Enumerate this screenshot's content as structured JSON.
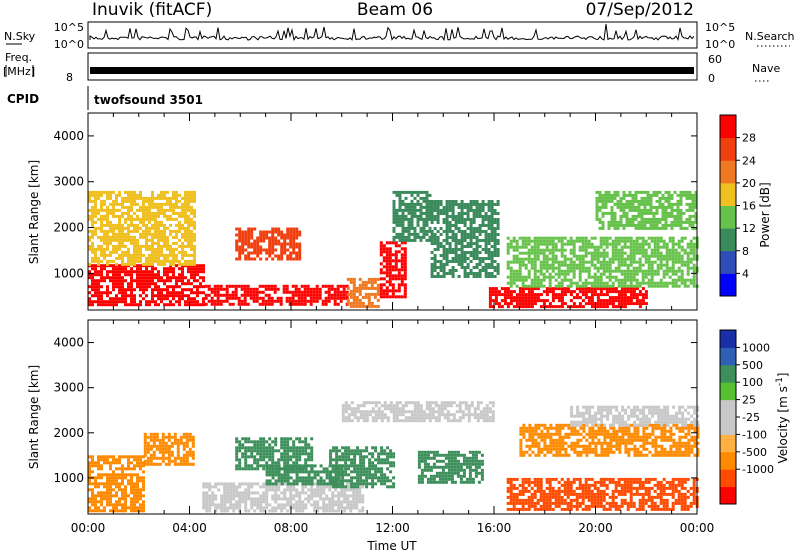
{
  "header": {
    "title": "Inuvik (fitACF)",
    "beam": "Beam 06",
    "date": "07/Sep/2012"
  },
  "top_panels": {
    "noise_left_label": "N.Sky",
    "noise_right_label": "N.Search",
    "noise_ticks": [
      "10^5",
      "10^0"
    ],
    "freq_left_label_1": "Freq.",
    "freq_left_label_2": "[MHz]",
    "freq_ticks": [
      "8"
    ],
    "nave_label": "Nave",
    "nave_ticks": [
      "60",
      "0"
    ],
    "cpid_label": "CPID",
    "cpid_value": "twofsound 3501"
  },
  "colors": {
    "power_scale": [
      "#0000ff",
      "#2f4db8",
      "#3b8a5c",
      "#66c24a",
      "#f0c020",
      "#f07820",
      "#f04010",
      "#ff0000"
    ],
    "velocity_scale": [
      "#ff0000",
      "#ff4a00",
      "#ff8a00",
      "#ffb040",
      "#c8c8c8",
      "#c8c8c8",
      "#55c030",
      "#3c8f5a",
      "#2e5fb5",
      "#1a2ea8"
    ]
  },
  "chart_data": [
    {
      "type": "heatmap",
      "title": "Power",
      "ylabel": "Slant Range [km]",
      "xlabel": "",
      "x_ticks": [
        "00:00",
        "04:00",
        "08:00",
        "12:00",
        "16:00",
        "20:00",
        "00:00"
      ],
      "y_ticks": [
        1000,
        2000,
        3000,
        4000
      ],
      "ylim": [
        200,
        4500
      ],
      "xlim_hours": [
        0,
        24
      ],
      "colorbar": {
        "label": "Power [dB]",
        "ticks": [
          "4",
          "8",
          "12",
          "16",
          "20",
          "24",
          "28"
        ],
        "range": [
          0,
          30
        ]
      },
      "regions": [
        {
          "x": [
            0,
            4.6
          ],
          "y": [
            300,
            1200
          ],
          "value": 29
        },
        {
          "x": [
            4.6,
            10.2
          ],
          "y": [
            300,
            750
          ],
          "value": 30
        },
        {
          "x": [
            10.2,
            11.5
          ],
          "y": [
            300,
            900
          ],
          "value": 22
        },
        {
          "x": [
            0,
            4.2
          ],
          "y": [
            1200,
            2800
          ],
          "value": 16
        },
        {
          "x": [
            5.8,
            8.3
          ],
          "y": [
            1300,
            2000
          ],
          "value": 26
        },
        {
          "x": [
            11.5,
            12.5
          ],
          "y": [
            500,
            1700
          ],
          "value": 27
        },
        {
          "x": [
            12,
            13.5
          ],
          "y": [
            1700,
            2800
          ],
          "value": 10
        },
        {
          "x": [
            13.5,
            16.2
          ],
          "y": [
            900,
            2600
          ],
          "value": 8
        },
        {
          "x": [
            15.8,
            22
          ],
          "y": [
            300,
            700
          ],
          "value": 28
        },
        {
          "x": [
            16.5,
            24
          ],
          "y": [
            700,
            1800
          ],
          "value": 14
        },
        {
          "x": [
            20,
            24
          ],
          "y": [
            2000,
            2800
          ],
          "value": 12
        }
      ]
    },
    {
      "type": "heatmap",
      "title": "Velocity",
      "ylabel": "Slant Range [km]",
      "xlabel": "Time UT",
      "x_ticks": [
        "00:00",
        "04:00",
        "08:00",
        "12:00",
        "16:00",
        "20:00",
        "00:00"
      ],
      "y_ticks": [
        1000,
        2000,
        3000,
        4000
      ],
      "ylim": [
        200,
        4500
      ],
      "xlim_hours": [
        0,
        24
      ],
      "colorbar": {
        "label": "Velocity [m s",
        "label_sup": "-1",
        "label_end": "]",
        "ticks": [
          "1000",
          "500",
          "100",
          "25",
          "-25",
          "-100",
          "-500",
          "-1000"
        ]
      },
      "regions": [
        {
          "x": [
            0,
            2.2
          ],
          "y": [
            300,
            1500
          ],
          "value": -200
        },
        {
          "x": [
            2.2,
            4.2
          ],
          "y": [
            1300,
            2000
          ],
          "value": -120
        },
        {
          "x": [
            4.5,
            10.8
          ],
          "y": [
            300,
            900
          ],
          "value": 0
        },
        {
          "x": [
            5.8,
            8.8
          ],
          "y": [
            1200,
            1900
          ],
          "value": 300
        },
        {
          "x": [
            7,
            10
          ],
          "y": [
            900,
            1300
          ],
          "value": 100
        },
        {
          "x": [
            9.5,
            12
          ],
          "y": [
            800,
            1700
          ],
          "value": 150
        },
        {
          "x": [
            10,
            16
          ],
          "y": [
            2300,
            2700
          ],
          "value": 0
        },
        {
          "x": [
            13,
            15.5
          ],
          "y": [
            900,
            1600
          ],
          "value": 200
        },
        {
          "x": [
            16.5,
            24
          ],
          "y": [
            300,
            1000
          ],
          "value": -300
        },
        {
          "x": [
            17,
            24
          ],
          "y": [
            1500,
            2200
          ],
          "value": -80
        },
        {
          "x": [
            19,
            24
          ],
          "y": [
            2200,
            2600
          ],
          "value": 0
        }
      ]
    }
  ]
}
